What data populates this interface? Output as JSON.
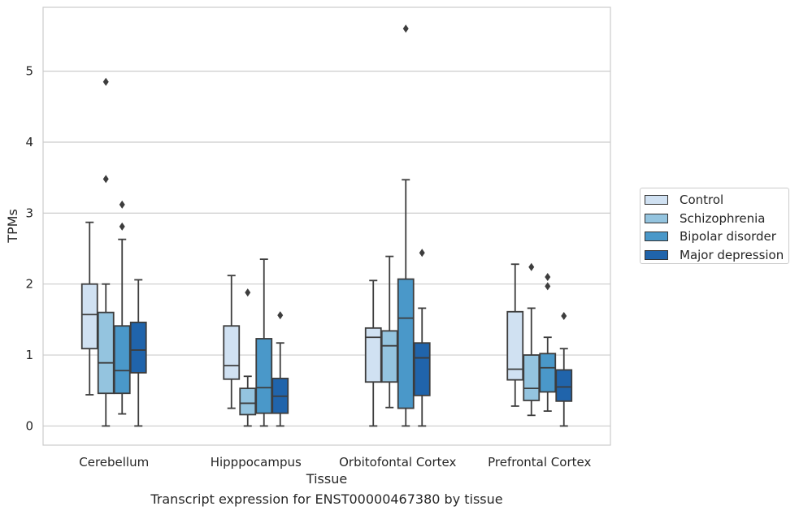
{
  "chart_data": {
    "type": "box",
    "title": "",
    "caption": "Transcript expression for ENST00000467380 by tissue",
    "xlabel": "Tissue",
    "ylabel": "TPMs",
    "ylim": [
      -0.27,
      5.9
    ],
    "yticks": [
      "0",
      "1",
      "2",
      "3",
      "4",
      "5"
    ],
    "grid": "horizontal",
    "legend_position": "right",
    "categories": [
      "Cerebellum",
      "Hipppocampus",
      "Orbitofontal Cortex",
      "Prefrontal Cortex"
    ],
    "series": [
      {
        "name": "Control",
        "color": "#d0e1f2",
        "boxes": [
          {
            "whislo": 0.44,
            "q1": 1.09,
            "med": 1.57,
            "q3": 2.0,
            "whishi": 2.87,
            "fliers": []
          },
          {
            "whislo": 0.25,
            "q1": 0.66,
            "med": 0.85,
            "q3": 1.41,
            "whishi": 2.12,
            "fliers": []
          },
          {
            "whislo": 0.0,
            "q1": 0.62,
            "med": 1.25,
            "q3": 1.38,
            "whishi": 2.05,
            "fliers": []
          },
          {
            "whislo": 0.28,
            "q1": 0.65,
            "med": 0.8,
            "q3": 1.61,
            "whishi": 2.28,
            "fliers": []
          }
        ]
      },
      {
        "name": "Schizophrenia",
        "color": "#94c4df",
        "boxes": [
          {
            "whislo": 0.0,
            "q1": 0.46,
            "med": 0.89,
            "q3": 1.6,
            "whishi": 2.0,
            "fliers": [
              3.48,
              4.85
            ]
          },
          {
            "whislo": 0.0,
            "q1": 0.16,
            "med": 0.32,
            "q3": 0.53,
            "whishi": 0.7,
            "fliers": [
              1.88
            ]
          },
          {
            "whislo": 0.26,
            "q1": 0.62,
            "med": 1.13,
            "q3": 1.34,
            "whishi": 2.39,
            "fliers": []
          },
          {
            "whislo": 0.15,
            "q1": 0.36,
            "med": 0.53,
            "q3": 1.0,
            "whishi": 1.66,
            "fliers": [
              2.24
            ]
          }
        ]
      },
      {
        "name": "Bipolar disorder",
        "color": "#4a98c9",
        "boxes": [
          {
            "whislo": 0.17,
            "q1": 0.46,
            "med": 0.78,
            "q3": 1.41,
            "whishi": 2.63,
            "fliers": [
              2.81,
              3.12
            ]
          },
          {
            "whislo": 0.0,
            "q1": 0.18,
            "med": 0.54,
            "q3": 1.23,
            "whishi": 2.35,
            "fliers": []
          },
          {
            "whislo": 0.0,
            "q1": 0.25,
            "med": 1.52,
            "q3": 2.07,
            "whishi": 3.47,
            "fliers": [
              5.6
            ]
          },
          {
            "whislo": 0.21,
            "q1": 0.48,
            "med": 0.82,
            "q3": 1.02,
            "whishi": 1.25,
            "fliers": [
              1.97,
              2.1
            ]
          }
        ]
      },
      {
        "name": "Major depression",
        "color": "#2064ab",
        "boxes": [
          {
            "whislo": 0.0,
            "q1": 0.75,
            "med": 1.07,
            "q3": 1.46,
            "whishi": 2.06,
            "fliers": []
          },
          {
            "whislo": 0.0,
            "q1": 0.18,
            "med": 0.42,
            "q3": 0.67,
            "whishi": 1.17,
            "fliers": [
              1.56
            ]
          },
          {
            "whislo": 0.0,
            "q1": 0.43,
            "med": 0.96,
            "q3": 1.17,
            "whishi": 1.66,
            "fliers": [
              2.44
            ]
          },
          {
            "whislo": 0.0,
            "q1": 0.35,
            "med": 0.55,
            "q3": 0.79,
            "whishi": 1.09,
            "fliers": [
              1.55
            ]
          }
        ]
      }
    ]
  }
}
